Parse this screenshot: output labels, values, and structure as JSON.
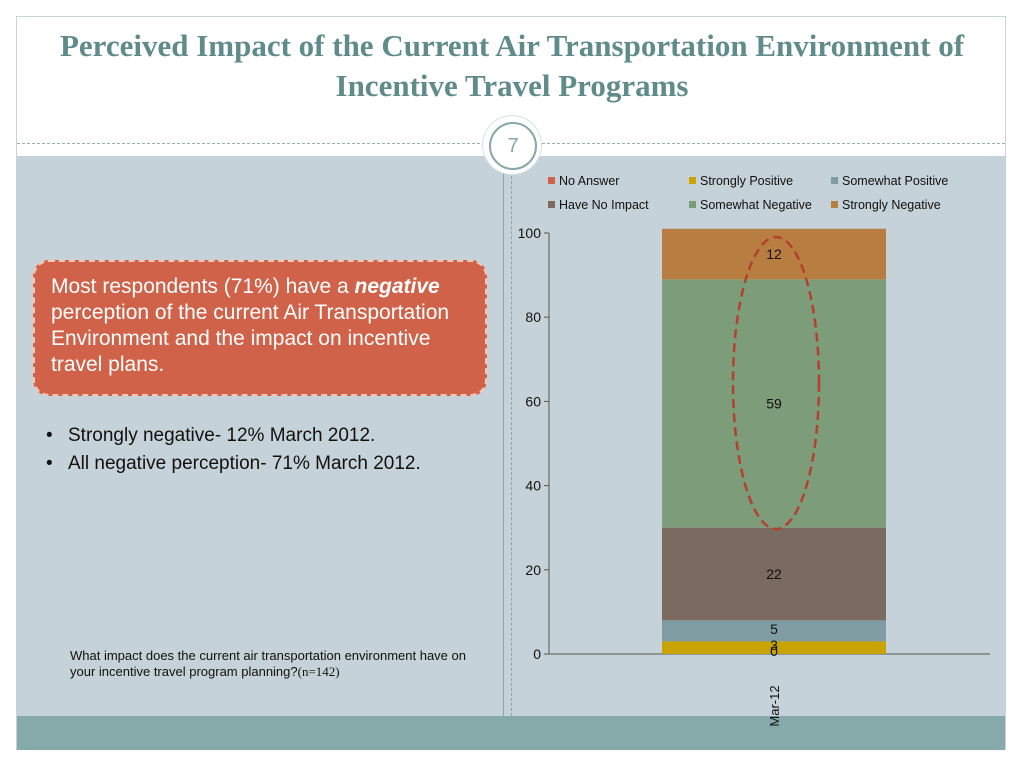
{
  "slide": {
    "title": "Perceived Impact of the Current Air Transportation Environment of Incentive Travel Programs",
    "page_number": "7",
    "callout": {
      "text_pre": "Most respondents (71%) have a",
      "text_emph": "negative",
      "text_post": "perception of the current Air Transportation Environment and the impact on incentive travel plans."
    },
    "bullets": [
      "Strongly negative- 12% March 2012.",
      "All negative perception- 71% March 2012."
    ],
    "question": "What impact does the current air transportation environment have on your incentive travel program planning?",
    "question_n": "(n=142)"
  },
  "colors": {
    "title": "#5f8b8a",
    "content_bg": "#c5d2d9",
    "footer": "#86a9a9",
    "callout": "#d0624a",
    "ellipse": "#b4412f"
  },
  "chart_data": {
    "type": "bar",
    "stacked": true,
    "categories": [
      "Mar-12"
    ],
    "ylim": [
      0,
      100
    ],
    "yticks": [
      0,
      20,
      40,
      60,
      80,
      100
    ],
    "legend_position": "top",
    "series": [
      {
        "name": "No Answer",
        "values": [
          0
        ],
        "color": "#d0624a",
        "label": "0"
      },
      {
        "name": "Strongly Positive",
        "values": [
          3
        ],
        "color": "#c9a400",
        "label": "3"
      },
      {
        "name": "Somewhat Positive",
        "values": [
          5
        ],
        "color": "#7f9ca2",
        "label": "5"
      },
      {
        "name": "Have No Impact",
        "values": [
          22
        ],
        "color": "#7a6a5f",
        "label": "22"
      },
      {
        "name": "Somewhat Negative",
        "values": [
          59
        ],
        "color": "#7d9c7a",
        "label": "59"
      },
      {
        "name": "Strongly Negative",
        "values": [
          12
        ],
        "color": "#b87d40",
        "label": "12"
      }
    ],
    "annotation": "dashed ellipse around negative segments"
  }
}
